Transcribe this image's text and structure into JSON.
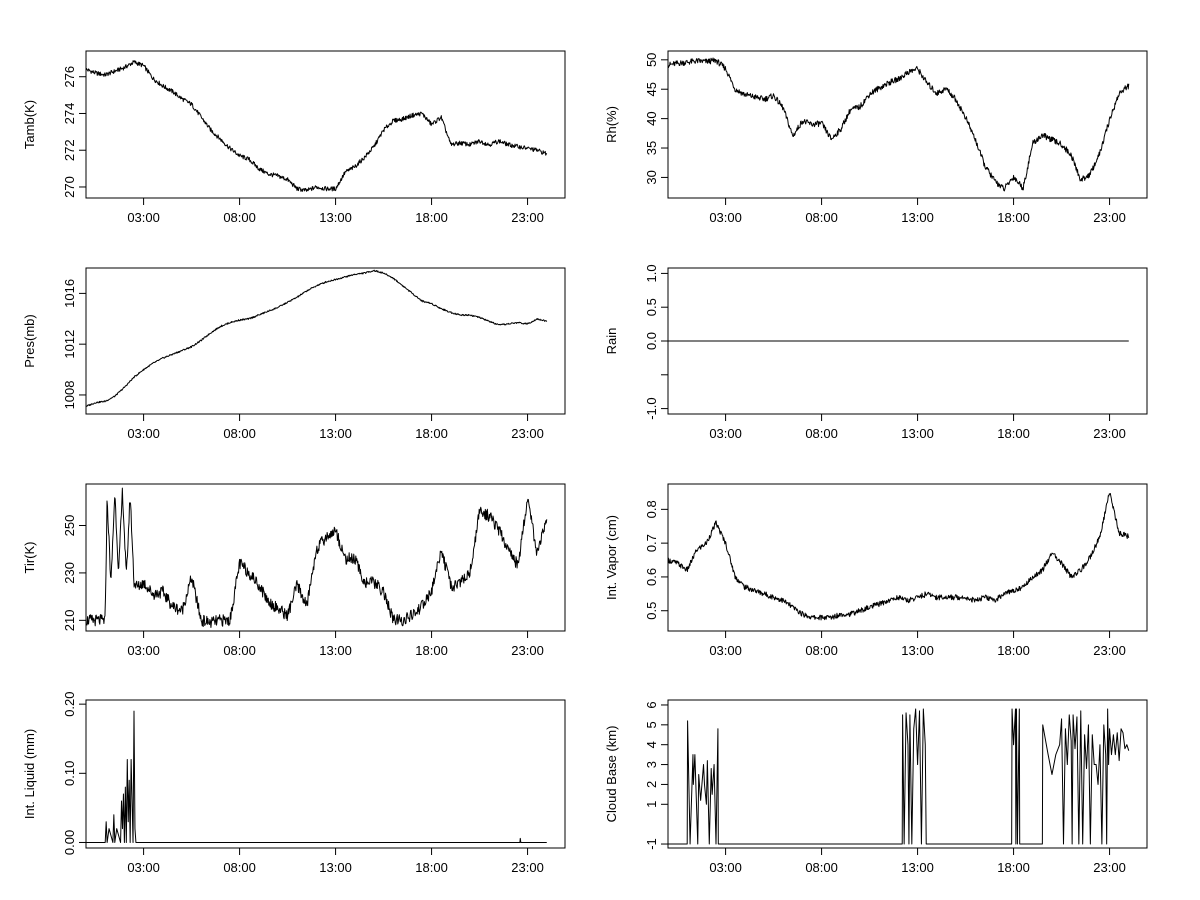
{
  "chart_data": [
    {
      "type": "line",
      "ylabel": "Tamb(K)",
      "x_tick_labels": [
        "03:00",
        "08:00",
        "13:00",
        "18:00",
        "23:00"
      ],
      "x_tick_hours": [
        3,
        8,
        13,
        18,
        23
      ],
      "xlim": [
        0.0,
        24.95
      ],
      "y_ticks": [
        270,
        272,
        274,
        276
      ],
      "y_tick_labels": [
        "270",
        "272",
        "274",
        "276"
      ],
      "ylim": [
        269.4,
        277.4
      ],
      "noise": 0.12,
      "series": [
        {
          "x": [
            0.0,
            0.5,
            1.0,
            1.5,
            2.0,
            2.5,
            3.0,
            3.5,
            4.0,
            4.5,
            5.0,
            5.5,
            6.0,
            6.5,
            7.0,
            7.5,
            8.0,
            8.5,
            9.0,
            9.5,
            10.0,
            10.5,
            11.0,
            11.5,
            12.0,
            12.5,
            13.0,
            13.5,
            14.0,
            14.5,
            15.0,
            15.5,
            16.0,
            16.5,
            17.0,
            17.5,
            18.0,
            18.5,
            19.0,
            19.5,
            20.0,
            20.5,
            21.0,
            21.5,
            22.0,
            22.5,
            23.0,
            23.5,
            24.0
          ],
          "y": [
            276.4,
            276.2,
            276.1,
            276.3,
            276.5,
            276.8,
            276.6,
            275.9,
            275.5,
            275.2,
            274.8,
            274.5,
            273.8,
            273.1,
            272.6,
            272.1,
            271.7,
            271.5,
            271.0,
            270.7,
            270.6,
            270.4,
            269.9,
            269.8,
            270.0,
            269.9,
            269.9,
            270.8,
            271.1,
            271.6,
            272.2,
            273.1,
            273.6,
            273.7,
            273.9,
            274.0,
            273.4,
            273.8,
            272.3,
            272.4,
            272.3,
            272.5,
            272.3,
            272.5,
            272.3,
            272.2,
            272.1,
            272.0,
            271.8
          ]
        }
      ]
    },
    {
      "type": "line",
      "ylabel": "Rh(%)",
      "x_tick_labels": [
        "03:00",
        "08:00",
        "13:00",
        "18:00",
        "23:00"
      ],
      "x_tick_hours": [
        3,
        8,
        13,
        18,
        23
      ],
      "xlim": [
        0.0,
        24.95
      ],
      "y_ticks": [
        30,
        35,
        40,
        45,
        50
      ],
      "y_tick_labels": [
        "30",
        "35",
        "40",
        "45",
        "50"
      ],
      "ylim": [
        26.5,
        51.5
      ],
      "noise": 0.5,
      "series": [
        {
          "x": [
            0.0,
            0.5,
            1.0,
            1.5,
            2.0,
            2.5,
            3.0,
            3.5,
            4.0,
            4.5,
            5.0,
            5.5,
            6.0,
            6.5,
            7.0,
            7.5,
            8.0,
            8.5,
            9.0,
            9.5,
            10.0,
            10.5,
            11.0,
            11.5,
            12.0,
            12.5,
            13.0,
            13.5,
            14.0,
            14.5,
            15.0,
            15.5,
            16.0,
            16.5,
            17.0,
            17.5,
            18.0,
            18.5,
            19.0,
            19.5,
            20.0,
            20.5,
            21.0,
            21.5,
            22.0,
            22.5,
            23.0,
            23.5,
            24.0
          ],
          "y": [
            49.1,
            49.4,
            49.6,
            49.8,
            49.7,
            49.9,
            48.5,
            45.0,
            44.1,
            43.7,
            43.3,
            43.9,
            41.8,
            37.0,
            39.6,
            39.0,
            39.2,
            36.5,
            38.2,
            41.5,
            42.0,
            44.2,
            45.2,
            46.1,
            46.7,
            47.9,
            48.5,
            46.0,
            44.3,
            45.1,
            43.2,
            40.2,
            36.5,
            32.0,
            29.5,
            28.0,
            30.1,
            28.2,
            35.8,
            37.2,
            36.4,
            35.6,
            33.8,
            29.5,
            30.6,
            34.2,
            39.8,
            44.3,
            45.6
          ]
        }
      ]
    },
    {
      "type": "line",
      "ylabel": "Pres(mb)",
      "x_tick_labels": [
        "03:00",
        "08:00",
        "13:00",
        "18:00",
        "23:00"
      ],
      "x_tick_hours": [
        3,
        8,
        13,
        18,
        23
      ],
      "xlim": [
        0.0,
        24.95
      ],
      "y_ticks": [
        1008,
        1012,
        1016
      ],
      "y_tick_labels": [
        "1008",
        "1012",
        "1016"
      ],
      "ylim": [
        1006.5,
        1018.0
      ],
      "noise": 0.06,
      "series": [
        {
          "x": [
            0.0,
            0.5,
            1.0,
            1.5,
            2.0,
            2.5,
            3.0,
            3.5,
            4.0,
            4.5,
            5.0,
            5.5,
            6.0,
            6.5,
            7.0,
            7.5,
            8.0,
            8.5,
            9.0,
            9.5,
            10.0,
            10.5,
            11.0,
            11.5,
            12.0,
            12.5,
            13.0,
            13.5,
            14.0,
            14.5,
            15.0,
            15.5,
            16.0,
            16.5,
            17.0,
            17.5,
            18.0,
            18.5,
            19.0,
            19.5,
            20.0,
            20.5,
            21.0,
            21.5,
            22.0,
            22.5,
            23.0,
            23.5,
            24.0
          ],
          "y": [
            1007.1,
            1007.4,
            1007.5,
            1007.9,
            1008.6,
            1009.4,
            1010.0,
            1010.5,
            1010.9,
            1011.2,
            1011.5,
            1011.8,
            1012.3,
            1012.9,
            1013.4,
            1013.7,
            1013.9,
            1014.0,
            1014.3,
            1014.6,
            1014.9,
            1015.3,
            1015.7,
            1016.2,
            1016.6,
            1016.9,
            1017.1,
            1017.3,
            1017.5,
            1017.6,
            1017.8,
            1017.6,
            1017.2,
            1016.6,
            1016.0,
            1015.4,
            1015.2,
            1014.8,
            1014.5,
            1014.3,
            1014.3,
            1014.1,
            1013.8,
            1013.5,
            1013.6,
            1013.7,
            1013.6,
            1014.0,
            1013.8
          ]
        }
      ]
    },
    {
      "type": "line",
      "ylabel": "Rain",
      "x_tick_labels": [
        "03:00",
        "08:00",
        "13:00",
        "18:00",
        "23:00"
      ],
      "x_tick_hours": [
        3,
        8,
        13,
        18,
        23
      ],
      "xlim": [
        0.0,
        24.95
      ],
      "y_ticks": [
        -1.0,
        -0.5,
        0.0,
        0.5,
        1.0
      ],
      "y_tick_labels": [
        "-1.0",
        "",
        "0.0",
        "0.5",
        "1.0"
      ],
      "ylim": [
        -1.08,
        1.08
      ],
      "noise": 0.0,
      "series": [
        {
          "x": [
            0.0,
            24.0
          ],
          "y": [
            0.0,
            0.0
          ]
        }
      ]
    },
    {
      "type": "line",
      "ylabel": "Tir(K)",
      "x_tick_labels": [
        "03:00",
        "08:00",
        "13:00",
        "18:00",
        "23:00"
      ],
      "x_tick_hours": [
        3,
        8,
        13,
        18,
        23
      ],
      "xlim": [
        0.0,
        24.95
      ],
      "y_ticks": [
        210,
        230,
        250
      ],
      "y_tick_labels": [
        "210",
        "230",
        "250"
      ],
      "ylim": [
        205.5,
        267.5
      ],
      "noise": 2.5,
      "series": [
        {
          "x": [
            0.0,
            0.5,
            0.9,
            1.0,
            1.1,
            1.3,
            1.5,
            1.7,
            1.9,
            2.1,
            2.3,
            2.5,
            2.7,
            3.0,
            3.5,
            4.0,
            4.5,
            5.0,
            5.5,
            6.0,
            6.5,
            7.0,
            7.5,
            8.0,
            8.5,
            9.0,
            9.5,
            10.0,
            10.5,
            11.0,
            11.5,
            12.0,
            12.5,
            13.0,
            13.5,
            14.0,
            14.5,
            15.0,
            15.5,
            16.0,
            16.5,
            17.0,
            17.5,
            18.0,
            18.5,
            19.0,
            19.5,
            20.0,
            20.5,
            21.0,
            21.5,
            22.0,
            22.5,
            23.0,
            23.5,
            24.0
          ],
          "y": [
            210,
            210,
            210,
            210,
            262,
            225,
            264,
            230,
            265,
            228,
            263,
            226,
            224,
            226,
            221,
            222,
            216,
            214,
            228,
            210,
            209,
            210,
            210,
            234,
            230,
            225,
            218,
            215,
            212,
            225,
            216,
            240,
            245,
            248,
            236,
            236,
            226,
            226,
            222,
            210,
            210,
            212,
            216,
            222,
            240,
            224,
            226,
            230,
            256,
            254,
            248,
            240,
            233,
            262,
            238,
            252
          ]
        }
      ]
    },
    {
      "type": "line",
      "ylabel": "Int. Vapor (cm)",
      "x_tick_labels": [
        "03:00",
        "08:00",
        "13:00",
        "18:00",
        "23:00"
      ],
      "x_tick_hours": [
        3,
        8,
        13,
        18,
        23
      ],
      "xlim": [
        0.0,
        24.95
      ],
      "y_ticks": [
        0.5,
        0.6,
        0.7,
        0.8
      ],
      "y_tick_labels": [
        "0.5",
        "0.6",
        "0.7",
        "0.8"
      ],
      "ylim": [
        0.44,
        0.875
      ],
      "noise": 0.008,
      "series": [
        {
          "x": [
            0.0,
            0.5,
            1.0,
            1.5,
            2.0,
            2.5,
            3.0,
            3.5,
            4.0,
            4.5,
            5.0,
            5.5,
            6.0,
            6.5,
            7.0,
            7.5,
            8.0,
            8.5,
            9.0,
            9.5,
            10.0,
            10.5,
            11.0,
            11.5,
            12.0,
            12.5,
            13.0,
            13.5,
            14.0,
            14.5,
            15.0,
            15.5,
            16.0,
            16.5,
            17.0,
            17.5,
            18.0,
            18.5,
            19.0,
            19.5,
            20.0,
            20.5,
            21.0,
            21.5,
            22.0,
            22.5,
            23.0,
            23.5,
            24.0
          ],
          "y": [
            0.65,
            0.64,
            0.62,
            0.68,
            0.7,
            0.76,
            0.7,
            0.6,
            0.57,
            0.56,
            0.55,
            0.54,
            0.53,
            0.51,
            0.49,
            0.48,
            0.48,
            0.48,
            0.49,
            0.49,
            0.5,
            0.51,
            0.52,
            0.53,
            0.54,
            0.53,
            0.54,
            0.55,
            0.54,
            0.54,
            0.54,
            0.54,
            0.53,
            0.54,
            0.53,
            0.55,
            0.56,
            0.57,
            0.6,
            0.62,
            0.67,
            0.64,
            0.6,
            0.62,
            0.66,
            0.72,
            0.85,
            0.73,
            0.72
          ]
        }
      ]
    },
    {
      "type": "line",
      "ylabel": "Int. Liquid (mm)",
      "x_tick_labels": [
        "03:00",
        "08:00",
        "13:00",
        "18:00",
        "23:00"
      ],
      "x_tick_hours": [
        3,
        8,
        13,
        18,
        23
      ],
      "xlim": [
        0.0,
        24.95
      ],
      "y_ticks": [
        0.0,
        0.1,
        0.2
      ],
      "y_tick_labels": [
        "0.00",
        "0.10",
        "0.20"
      ],
      "ylim": [
        -0.008,
        0.206
      ],
      "noise": 0.0,
      "series": [
        {
          "x": [
            0.0,
            1.0,
            1.05,
            1.1,
            1.2,
            1.4,
            1.45,
            1.5,
            1.6,
            1.8,
            1.85,
            1.9,
            1.95,
            2.0,
            2.05,
            2.1,
            2.15,
            2.2,
            2.25,
            2.3,
            2.35,
            2.4,
            2.45,
            2.5,
            2.55,
            2.6,
            2.65,
            2.7,
            2.8,
            3.0,
            22.6,
            22.62,
            22.65,
            22.7,
            24.0
          ],
          "y": [
            0.0,
            0.0,
            0.03,
            0.0,
            0.02,
            0.0,
            0.04,
            0.0,
            0.02,
            0.0,
            0.06,
            0.02,
            0.07,
            0.0,
            0.08,
            0.0,
            0.12,
            0.03,
            0.09,
            0.0,
            0.12,
            0.06,
            0.0,
            0.19,
            0.02,
            0.0,
            0.0,
            0.0,
            0.0,
            0.0,
            0.0,
            0.006,
            0.0,
            0.0,
            0.0
          ]
        }
      ]
    },
    {
      "type": "line",
      "ylabel": "Cloud Base (km)",
      "x_tick_labels": [
        "03:00",
        "08:00",
        "13:00",
        "18:00",
        "23:00"
      ],
      "x_tick_hours": [
        3,
        8,
        13,
        18,
        23
      ],
      "xlim": [
        0.0,
        24.95
      ],
      "y_ticks": [
        -1,
        1,
        2,
        3,
        4,
        5,
        6
      ],
      "y_tick_labels": [
        "-1",
        "1",
        "2",
        "3",
        "4",
        "5",
        "6"
      ],
      "ylim": [
        -1.2,
        6.25
      ],
      "noise": 0.0,
      "series": [
        {
          "x": [
            0.0,
            1.0,
            1.02,
            1.15,
            1.3,
            1.32,
            1.4,
            1.55,
            1.6,
            1.7,
            1.85,
            1.9,
            2.0,
            2.05,
            2.15,
            2.25,
            2.3,
            2.4,
            2.5,
            2.6,
            2.62,
            2.7,
            12.2,
            12.22,
            12.3,
            12.4,
            12.5,
            12.55,
            12.6,
            12.7,
            12.8,
            12.9,
            13.0,
            13.1,
            13.2,
            13.3,
            13.4,
            13.45,
            13.5,
            17.9,
            17.92,
            18.0,
            18.1,
            18.12,
            18.15,
            18.2,
            18.3,
            18.32,
            19.5,
            19.52,
            19.8,
            20.0,
            20.2,
            20.4,
            20.5,
            20.6,
            20.7,
            20.8,
            20.9,
            21.0,
            21.05,
            21.1,
            21.2,
            21.3,
            21.4,
            21.5,
            21.6,
            21.7,
            21.8,
            21.9,
            22.0,
            22.1,
            22.2,
            22.3,
            22.4,
            22.5,
            22.6,
            22.7,
            22.8,
            22.85,
            22.9,
            22.95,
            23.0,
            23.1,
            23.2,
            23.3,
            23.4,
            23.5,
            23.6,
            23.7,
            23.8,
            23.9,
            24.0
          ],
          "y": [
            -1,
            -1,
            5.2,
            -1,
            3.5,
            2.0,
            3.5,
            -1,
            2.5,
            1.2,
            3.0,
            2.0,
            1.0,
            3.2,
            -1,
            2.8,
            1.5,
            3.0,
            -1,
            4.8,
            -1,
            -1,
            -1,
            5.5,
            -1,
            5.6,
            4.0,
            -1,
            5.5,
            -1,
            4.8,
            5.8,
            3.0,
            5.7,
            -1,
            5.8,
            4.0,
            -1,
            -1,
            -1,
            5.8,
            4.0,
            5.8,
            -1,
            5.8,
            -1,
            5.8,
            -1,
            -1,
            5.0,
            3.5,
            2.5,
            3.5,
            4.0,
            5.3,
            -1,
            4.8,
            3.0,
            5.5,
            4.2,
            -1,
            5.5,
            3.8,
            5.4,
            -1,
            5.7,
            -1,
            4.5,
            2.8,
            5.0,
            -1,
            4.5,
            3.0,
            3.0,
            2.0,
            4.0,
            -1,
            5.0,
            3.5,
            -1,
            5.8,
            3.0,
            4.8,
            3.5,
            4.5,
            3.5,
            4.6,
            3.2,
            4.8,
            4.6,
            3.8,
            4.0,
            3.7
          ]
        }
      ]
    }
  ]
}
